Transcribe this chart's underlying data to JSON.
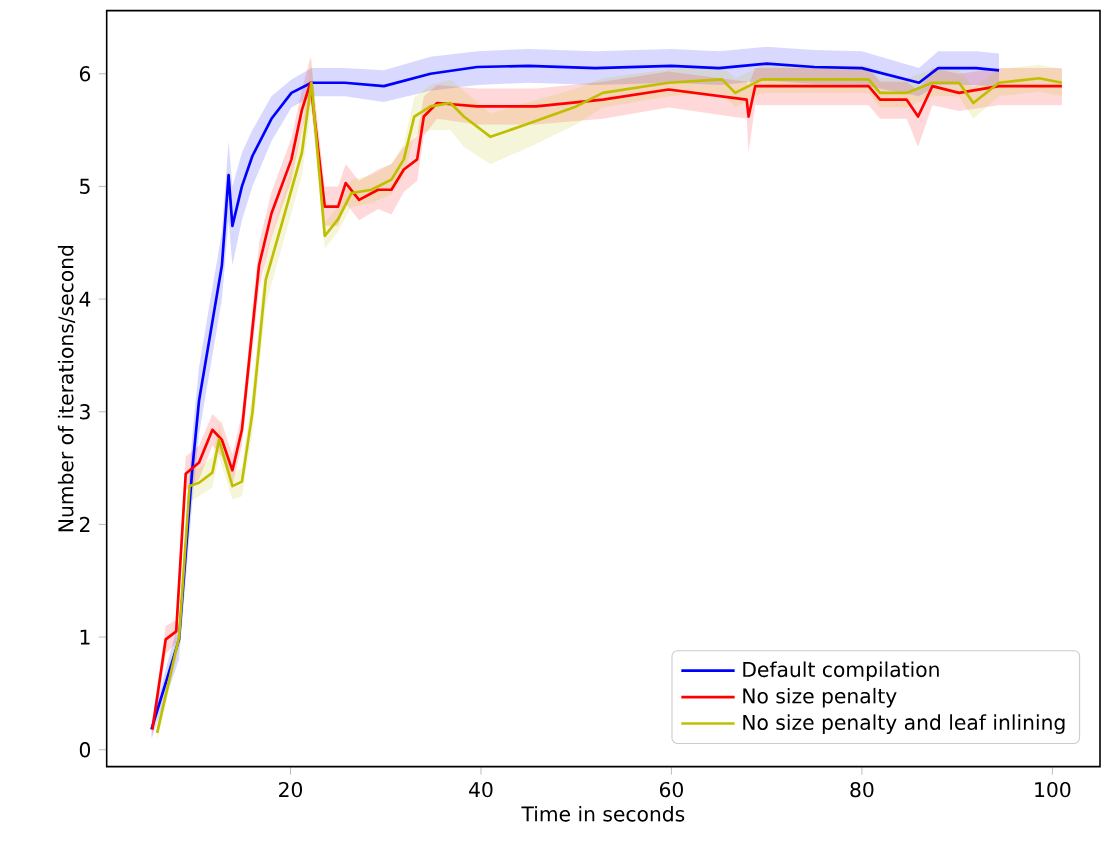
{
  "chart_data": {
    "type": "line",
    "xlabel": "Time in seconds",
    "ylabel": "Number of iterations/second",
    "xlim": [
      0.7,
      105
    ],
    "ylim": [
      -0.15,
      6.56
    ],
    "xticks": [
      20,
      40,
      60,
      80,
      100
    ],
    "yticks": [
      0,
      1,
      2,
      3,
      4,
      5,
      6
    ],
    "grid": false,
    "legend": "bottom right",
    "line_style": "solid",
    "marker": "none",
    "series": [
      {
        "name": "Default compilation",
        "color": "#0000ff",
        "x": [
          5.4,
          8.3,
          9.7,
          10.4,
          11.8,
          12.8,
          13.5,
          13.9,
          14.9,
          16,
          18,
          20.1,
          22.2,
          25.7,
          29.8,
          34.7,
          39.6,
          45,
          52,
          60,
          65,
          70,
          75,
          80,
          86,
          88,
          92,
          94.4
        ],
        "values": [
          0.18,
          0.98,
          2.5,
          3.1,
          3.8,
          4.3,
          5.1,
          4.65,
          5.0,
          5.27,
          5.6,
          5.83,
          5.92,
          5.92,
          5.89,
          6.0,
          6.06,
          6.07,
          6.05,
          6.07,
          6.05,
          6.09,
          6.06,
          6.05,
          5.92,
          6.05,
          6.05,
          6.03
        ],
        "lower": [
          0.1,
          0.8,
          2.2,
          2.8,
          3.5,
          4.0,
          4.7,
          4.3,
          4.7,
          5.0,
          5.4,
          5.7,
          5.8,
          5.8,
          5.75,
          5.85,
          5.9,
          5.92,
          5.9,
          5.92,
          5.9,
          5.94,
          5.91,
          5.9,
          5.8,
          5.9,
          5.9,
          5.88
        ],
        "upper": [
          0.25,
          1.15,
          2.8,
          3.4,
          4.1,
          4.6,
          5.4,
          5.0,
          5.3,
          5.5,
          5.8,
          5.95,
          6.05,
          6.05,
          6.03,
          6.15,
          6.2,
          6.22,
          6.2,
          6.22,
          6.2,
          6.24,
          6.21,
          6.2,
          6.05,
          6.2,
          6.2,
          6.18
        ]
      },
      {
        "name": "No size penalty",
        "color": "#ff0000",
        "x": [
          5.5,
          6.9,
          8,
          9,
          10.4,
          11.8,
          12.8,
          13.9,
          14.9,
          16.7,
          18,
          20.1,
          21.2,
          22.1,
          23.6,
          25,
          25.8,
          27.2,
          29.2,
          30.6,
          31.9,
          33.3,
          34,
          35.4,
          39.6,
          45.8,
          52.8,
          59.7,
          67.9,
          68.1,
          68.8,
          80.7,
          81.9,
          84.7,
          85.9,
          87.4,
          90.2,
          94.4,
          99.3,
          101
        ],
        "values": [
          0.18,
          0.98,
          1.05,
          2.45,
          2.55,
          2.84,
          2.75,
          2.48,
          2.84,
          4.3,
          4.76,
          5.24,
          5.68,
          5.92,
          4.82,
          4.82,
          5.03,
          4.88,
          4.97,
          4.97,
          5.15,
          5.24,
          5.62,
          5.74,
          5.71,
          5.71,
          5.77,
          5.86,
          5.77,
          5.62,
          5.89,
          5.89,
          5.77,
          5.77,
          5.62,
          5.89,
          5.83,
          5.89,
          5.89,
          5.89
        ],
        "lower": [
          0.1,
          0.85,
          0.95,
          2.3,
          2.4,
          2.7,
          2.6,
          2.35,
          2.7,
          4.1,
          4.55,
          5.05,
          5.5,
          5.75,
          4.65,
          4.65,
          4.85,
          4.7,
          4.8,
          4.75,
          4.95,
          5.05,
          5.45,
          5.6,
          5.55,
          5.55,
          5.6,
          5.7,
          5.6,
          5.3,
          5.72,
          5.72,
          5.6,
          5.6,
          5.35,
          5.72,
          5.67,
          5.72,
          5.72,
          5.72
        ],
        "upper": [
          0.25,
          1.1,
          1.15,
          2.6,
          2.7,
          2.98,
          2.9,
          2.62,
          2.98,
          4.5,
          4.95,
          5.43,
          5.86,
          6.15,
          5.0,
          5.0,
          5.2,
          5.05,
          5.15,
          5.2,
          5.35,
          5.45,
          5.8,
          5.9,
          5.87,
          5.87,
          5.93,
          6.02,
          5.93,
          5.9,
          6.05,
          6.05,
          5.93,
          5.93,
          5.85,
          6.05,
          6.0,
          6.05,
          6.05,
          6.05
        ]
      },
      {
        "name": "No size penalty and leaf inlining",
        "color": "#bfbf00",
        "x": [
          6,
          8.3,
          9.4,
          10.4,
          11.8,
          12.5,
          13.9,
          14.9,
          16,
          17.4,
          19.4,
          21.2,
          22.2,
          23.6,
          25,
          26.4,
          28.5,
          30.6,
          31.9,
          33,
          34.7,
          36.8,
          38.2,
          41,
          45.1,
          50,
          52.8,
          59.7,
          65.3,
          66.7,
          69.5,
          80.7,
          81.9,
          84.7,
          87.4,
          90.2,
          91.7,
          94.4,
          98.6,
          101
        ],
        "values": [
          0.15,
          1.0,
          2.34,
          2.37,
          2.46,
          2.75,
          2.34,
          2.38,
          2.99,
          4.17,
          4.76,
          5.3,
          5.92,
          4.56,
          4.71,
          4.94,
          4.97,
          5.06,
          5.24,
          5.62,
          5.71,
          5.74,
          5.62,
          5.44,
          5.56,
          5.71,
          5.83,
          5.92,
          5.95,
          5.83,
          5.95,
          5.95,
          5.83,
          5.83,
          5.92,
          5.92,
          5.74,
          5.92,
          5.96,
          5.92
        ],
        "lower": [
          0.08,
          0.9,
          2.2,
          2.25,
          2.33,
          2.6,
          2.22,
          2.25,
          2.8,
          3.95,
          4.55,
          5.1,
          5.7,
          4.45,
          4.6,
          4.82,
          4.85,
          4.93,
          5.1,
          5.45,
          5.5,
          5.5,
          5.35,
          5.2,
          5.35,
          5.55,
          5.7,
          5.8,
          5.83,
          5.7,
          5.83,
          5.83,
          5.7,
          5.7,
          5.8,
          5.8,
          5.6,
          5.8,
          5.84,
          5.8
        ],
        "upper": [
          0.22,
          1.1,
          2.48,
          2.5,
          2.6,
          2.9,
          2.46,
          2.5,
          3.18,
          4.4,
          4.97,
          5.5,
          6.15,
          4.68,
          4.82,
          5.06,
          5.1,
          5.2,
          5.38,
          5.79,
          5.9,
          5.95,
          5.85,
          5.65,
          5.75,
          5.87,
          5.96,
          6.04,
          6.07,
          5.96,
          6.07,
          6.07,
          5.96,
          5.96,
          6.04,
          6.04,
          5.88,
          6.04,
          6.08,
          6.04
        ]
      }
    ]
  }
}
